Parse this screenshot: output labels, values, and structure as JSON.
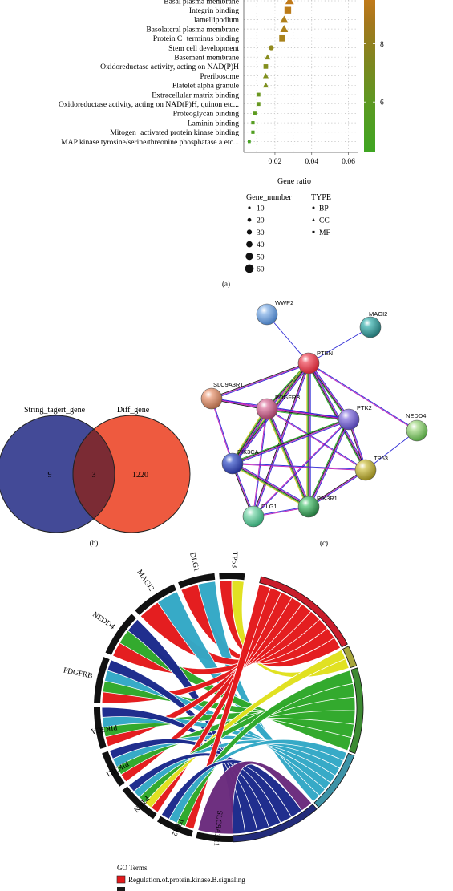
{
  "panel_a": {
    "categories": [
      "Basal plasma membrane",
      "Integrin binding",
      "lamellipodium",
      "Basolateral plasma membrane",
      "Protein C−terminus binding",
      "Stem cell development",
      "Basement membrane",
      "Oxidoreductase activity, acting on NAD(P)H",
      "Preribosome",
      "Platelet alpha granule",
      "Extracellular matrix binding",
      "Oxidoreductase activity, acting on NAD(P)H, quinon etc...",
      "Proteoglycan binding",
      "Laminin binding",
      "Mitogen−activated protein kinase binding",
      "MAP kinase tyrosine/serine/threonine phosphatase a etc..."
    ],
    "xlabel": "Gene ratio",
    "xticks": [
      "0.02",
      "0.04",
      "0.06"
    ],
    "colorbar_ticks": [
      "8",
      "6"
    ],
    "legend_size_title": "Gene_number",
    "legend_size_values": [
      "10",
      "20",
      "30",
      "40",
      "50",
      "60"
    ],
    "legend_type_title": "TYPE",
    "legend_type_values": [
      "BP",
      "CC",
      "MF"
    ],
    "caption": "(a)"
  },
  "panel_b": {
    "left_label": "String_tagert_gene",
    "right_label": "Diff_gene",
    "left_only": "9",
    "overlap": "3",
    "right_only": "1220",
    "caption": "(b)",
    "left_color": "#434a97",
    "right_color": "#ee5a3f",
    "overlap_color": "#7b2b34"
  },
  "panel_c": {
    "nodes": [
      "WWP2",
      "MAGI2",
      "PTEN",
      "SLC9A3R1",
      "PDGFRB",
      "PTK2",
      "NEDD4",
      "PIK3CA",
      "TP53",
      "DLG1",
      "PIK3R1"
    ],
    "caption": "(c)"
  },
  "panel_d": {
    "genes": [
      "TP53",
      "DLG1",
      "MAGI2",
      "NEDD4",
      "PDGFRB",
      "PIK3CA",
      "PIK3R1",
      "PTEN",
      "PTK2",
      "SLC9A3R1"
    ],
    "legend_title": "GO Terms",
    "legend_items": [
      "Regulation.of.protein.kinase.B.signaling"
    ],
    "legend_color": "#e3191c"
  },
  "chart_data": [
    {
      "type": "scatter",
      "xlabel": "Gene ratio",
      "categories": [
        "Basal plasma membrane",
        "Integrin binding",
        "lamellipodium",
        "Basolateral plasma membrane",
        "Protein C−terminus binding",
        "Stem cell development",
        "Basement membrane",
        "Oxidoreductase activity, acting on NAD(P)H",
        "Preribosome",
        "Platelet alpha granule",
        "Extracellular matrix binding",
        "Oxidoreductase activity, acting on NAD(P)H, quinon etc...",
        "Proteoglycan binding",
        "Laminin binding",
        "Mitogen−activated protein kinase binding",
        "MAP kinase tyrosine/serine/threonine phosphatase a etc..."
      ],
      "x": [
        0.028,
        0.027,
        0.025,
        0.025,
        0.024,
        0.018,
        0.016,
        0.015,
        0.015,
        0.015,
        0.011,
        0.011,
        0.009,
        0.008,
        0.008,
        0.006
      ],
      "gene_type": [
        "CC",
        "MF",
        "CC",
        "CC",
        "MF",
        "BP",
        "CC",
        "MF",
        "CC",
        "CC",
        "MF",
        "MF",
        "MF",
        "MF",
        "MF",
        "MF"
      ],
      "xlim": [
        0.003,
        0.065
      ],
      "colorbar_range": [
        4.3,
        9.5
      ],
      "grid": true
    },
    {
      "type": "venn",
      "sets": [
        "String_tagert_gene",
        "Diff_gene"
      ],
      "values": {
        "String_tagert_gene_only": 9,
        "overlap": 3,
        "Diff_gene_only": 1220
      }
    }
  ]
}
